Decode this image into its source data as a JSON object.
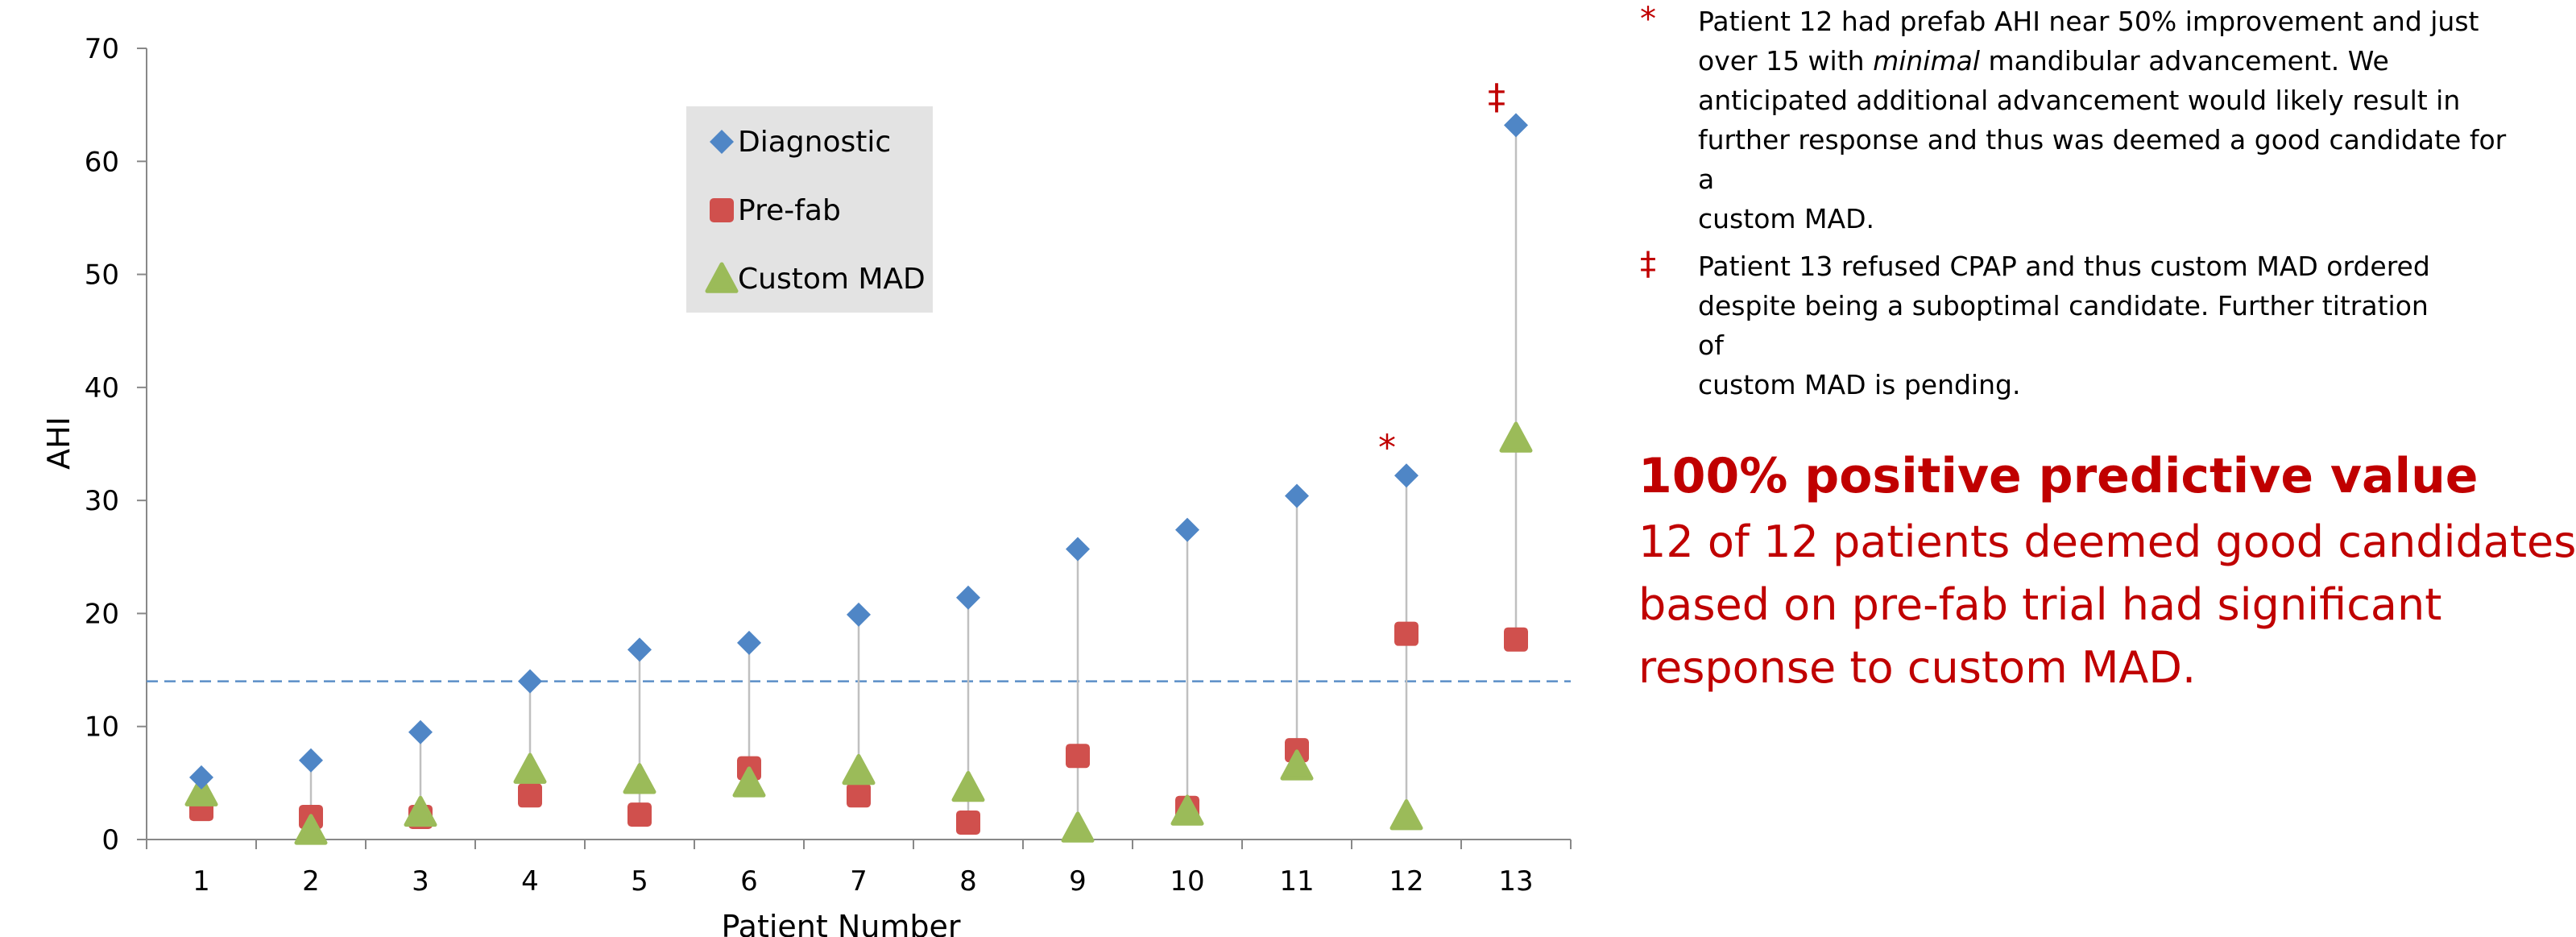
{
  "chart_data": {
    "type": "scatter",
    "title": "",
    "xlabel": "Patient Number",
    "ylabel": "AHI",
    "x": [
      1,
      2,
      3,
      4,
      5,
      6,
      7,
      8,
      9,
      10,
      11,
      12,
      13
    ],
    "xlim": [
      0.5,
      13.5
    ],
    "ylim": [
      0,
      70
    ],
    "yticks": [
      0,
      10,
      20,
      30,
      40,
      50,
      60,
      70
    ],
    "grid": false,
    "legend_position": "top-center",
    "reference_line": {
      "y": 14,
      "style": "dashed",
      "color": "#5b8fc7"
    },
    "connector_color": "#c0c0c0",
    "series": [
      {
        "name": "Diagnostic",
        "marker": "diamond",
        "color": "#4f86c6",
        "values": [
          5.5,
          7,
          9.5,
          14,
          16.8,
          17.4,
          19.9,
          21.4,
          25.7,
          27.4,
          30.4,
          32.2,
          63.2
        ]
      },
      {
        "name": "Pre-fab",
        "marker": "square",
        "color": "#d0504d",
        "values": [
          2.7,
          2,
          2,
          3.9,
          2.2,
          6.3,
          3.9,
          1.5,
          7.4,
          2.8,
          7.9,
          18.2,
          17.7
        ]
      },
      {
        "name": "Custom MAD",
        "marker": "triangle",
        "color": "#9bbb59",
        "values": [
          4.2,
          0.8,
          2.4,
          6.2,
          5.3,
          5,
          6.1,
          4.6,
          1,
          2.5,
          6.5,
          2.1,
          35.5
        ]
      }
    ],
    "annotations": [
      {
        "x": 12,
        "text": "*"
      },
      {
        "x": 13,
        "text": "‡"
      }
    ]
  },
  "notes": [
    {
      "symbol": "*",
      "lines": [
        "Patient 12 had prefab AHI near 50% improvement and just",
        "over 15 with ",
        "minimal",
        " mandibular advancement. We",
        "anticipated additional advancement would likely result in",
        "further response and thus was deemed a good candidate for a",
        "custom MAD."
      ]
    },
    {
      "symbol": "‡",
      "lines": [
        "Patient 13 refused CPAP and thus custom MAD ordered",
        "despite being a suboptimal candidate.  Further titration of",
        "custom MAD is pending."
      ]
    }
  ],
  "summary": {
    "title": "100% positive predictive value",
    "lines": [
      "12 of 12 patients deemed good candidates",
      "based on pre-fab trial had significant",
      "response to custom MAD."
    ]
  }
}
